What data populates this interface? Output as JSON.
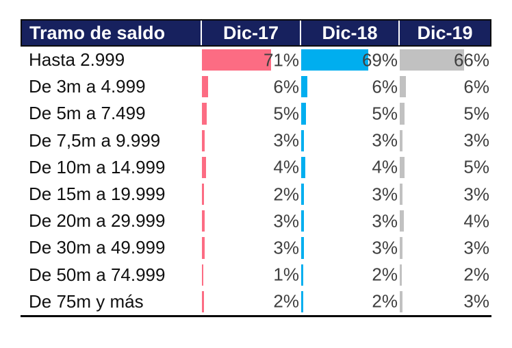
{
  "table": {
    "header": {
      "label_column": "Tramo de saldo",
      "period_columns": [
        "Dic-17",
        "Dic-18",
        "Dic-19"
      ]
    },
    "rows": [
      {
        "label": "Hasta 2.999",
        "values": [
          "71%",
          "69%",
          "66%"
        ]
      },
      {
        "label": "De 3m a 4.999",
        "values": [
          "6%",
          "6%",
          "6%"
        ]
      },
      {
        "label": "De 5m a 7.499",
        "values": [
          "5%",
          "5%",
          "5%"
        ]
      },
      {
        "label": "De 7,5m a 9.999",
        "values": [
          "3%",
          "3%",
          "3%"
        ]
      },
      {
        "label": "De 10m a 14.999",
        "values": [
          "4%",
          "4%",
          "5%"
        ]
      },
      {
        "label": "De 15m a 19.999",
        "values": [
          "2%",
          "3%",
          "3%"
        ]
      },
      {
        "label": "De 20m a 29.999",
        "values": [
          "3%",
          "3%",
          "4%"
        ]
      },
      {
        "label": "De 30m a 49.999",
        "values": [
          "3%",
          "3%",
          "3%"
        ]
      },
      {
        "label": "De 50m a 74.999",
        "values": [
          "1%",
          "2%",
          "2%"
        ]
      },
      {
        "label": "De 75m y más",
        "values": [
          "2%",
          "2%",
          "3%"
        ]
      }
    ]
  },
  "chart_data": {
    "type": "table",
    "title": "",
    "description": "Table of balance tranches with in-cell data bars; bars grow from the left of each period column, value labels right-aligned in dark grey",
    "categories": [
      "Hasta 2.999",
      "De 3m a 4.999",
      "De 5m a 7.499",
      "De 7,5m a 9.999",
      "De 10m a 14.999",
      "De 15m a 19.999",
      "De 20m a 29.999",
      "De 30m a 49.999",
      "De 50m a 74.999",
      "De 75m y más"
    ],
    "series": [
      {
        "name": "Dic-17",
        "values": [
          71,
          6,
          5,
          3,
          4,
          2,
          3,
          3,
          1,
          2
        ]
      },
      {
        "name": "Dic-18",
        "values": [
          69,
          6,
          5,
          3,
          4,
          3,
          3,
          3,
          2,
          2
        ]
      },
      {
        "name": "Dic-19",
        "values": [
          66,
          6,
          5,
          3,
          5,
          3,
          4,
          3,
          2,
          3
        ]
      }
    ],
    "unit": "%",
    "value_range": [
      0,
      100
    ]
  },
  "colors": {
    "header_bg": "#17215E",
    "header_text": "#FFFFFF",
    "series_colors": [
      "#FC6C83",
      "#00AEEF",
      "#C1C1C1"
    ],
    "value_text": "#3F3F3F",
    "row_label_text": "#101010",
    "bottom_border": "#000000"
  }
}
